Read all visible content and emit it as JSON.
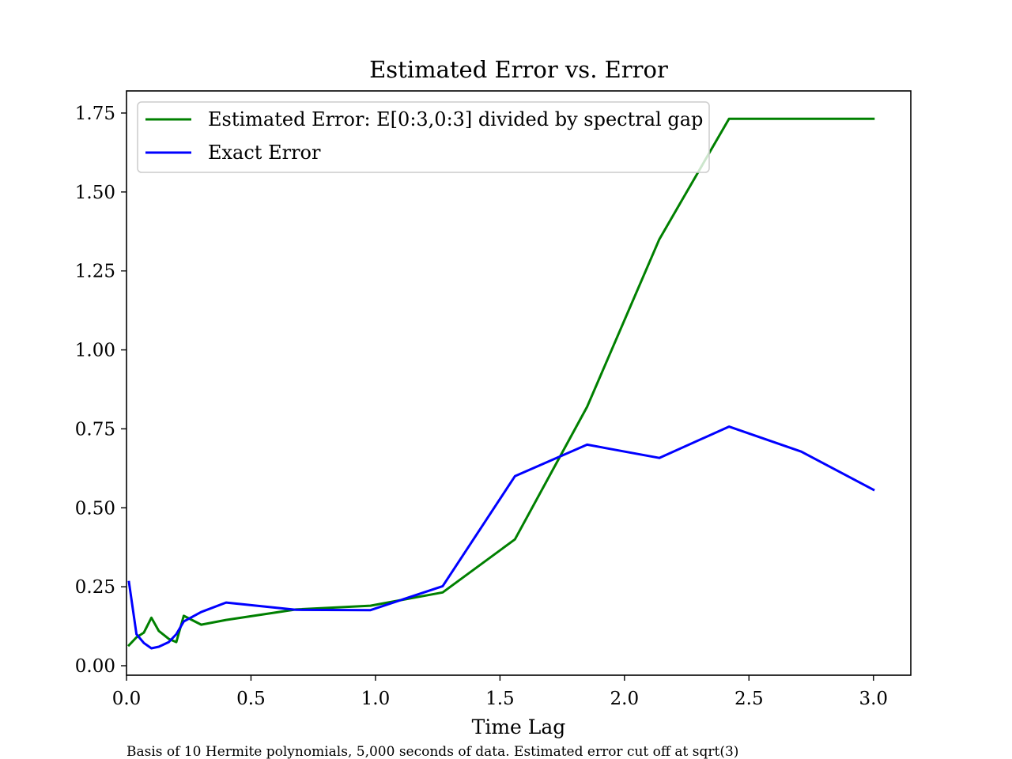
{
  "chart_data": {
    "type": "line",
    "title": "Estimated Error vs. Error",
    "xlabel": "Time Lag",
    "ylabel": "",
    "caption": "Basis of 10 Hermite polynomials, 5,000 seconds of data. Estimated error cut off at sqrt(3)",
    "xlim": [
      0.0,
      3.15
    ],
    "ylim": [
      -0.03,
      1.82
    ],
    "xticks": [
      0.0,
      0.5,
      1.0,
      1.5,
      2.0,
      2.5,
      3.0
    ],
    "xtick_labels": [
      "0.0",
      "0.5",
      "1.0",
      "1.5",
      "2.0",
      "2.5",
      "3.0"
    ],
    "yticks": [
      0.0,
      0.25,
      0.5,
      0.75,
      1.0,
      1.25,
      1.5,
      1.75
    ],
    "ytick_labels": [
      "0.00",
      "0.25",
      "0.50",
      "0.75",
      "1.00",
      "1.25",
      "1.50",
      "1.75"
    ],
    "grid": false,
    "legend_position": "top-left",
    "series": [
      {
        "name": "Estimated Error: E[0:3,0:3] divided by spectral gap",
        "color": "#008000",
        "x": [
          0.01,
          0.04,
          0.07,
          0.1,
          0.13,
          0.17,
          0.2,
          0.23,
          0.3,
          0.4,
          0.68,
          0.98,
          1.27,
          1.56,
          1.85,
          2.14,
          2.42,
          2.71,
          3.0
        ],
        "y": [
          0.065,
          0.09,
          0.105,
          0.152,
          0.11,
          0.085,
          0.075,
          0.158,
          0.13,
          0.145,
          0.178,
          0.19,
          0.232,
          0.4,
          0.82,
          1.35,
          1.732,
          1.732,
          1.732
        ]
      },
      {
        "name": "Exact Error",
        "color": "#0000ff",
        "x": [
          0.01,
          0.04,
          0.07,
          0.1,
          0.13,
          0.17,
          0.2,
          0.23,
          0.3,
          0.4,
          0.68,
          0.98,
          1.27,
          1.56,
          1.85,
          2.14,
          2.42,
          2.71,
          3.0
        ],
        "y": [
          0.265,
          0.1,
          0.072,
          0.055,
          0.06,
          0.075,
          0.1,
          0.14,
          0.17,
          0.2,
          0.177,
          0.176,
          0.252,
          0.6,
          0.7,
          0.658,
          0.757,
          0.678,
          0.557
        ]
      }
    ]
  }
}
